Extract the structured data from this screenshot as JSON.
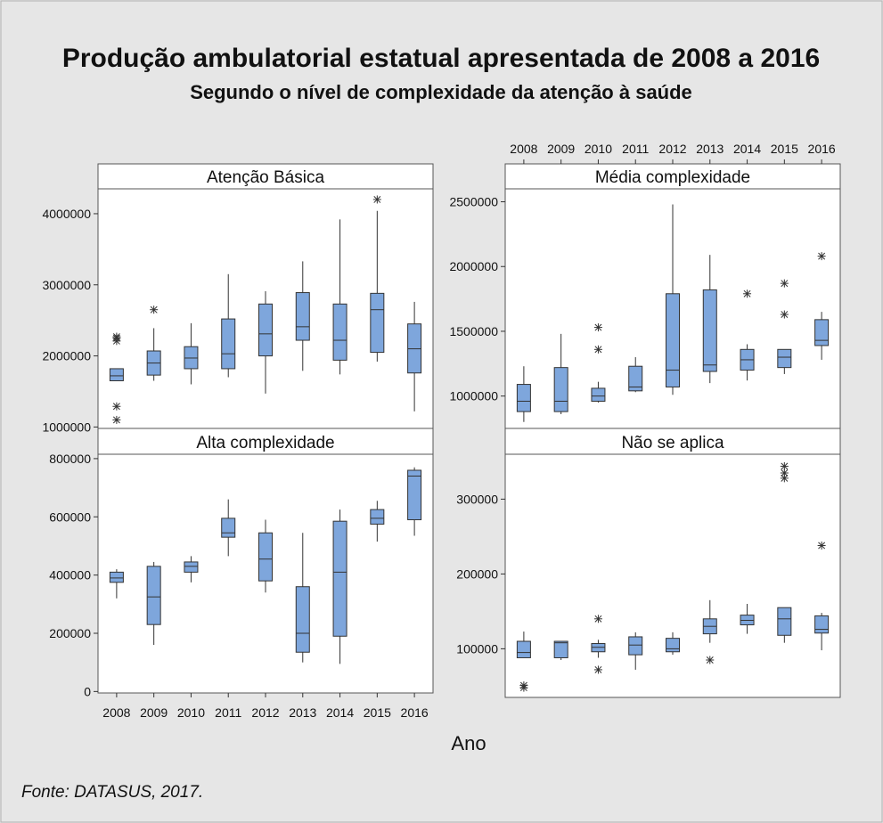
{
  "chart_data": {
    "type": "boxplot",
    "title": "Produção ambulatorial estatual apresentada de 2008 a 2016",
    "subtitle": "Segundo o nível de complexidade da atenção à saúde",
    "xlabel": "Ano",
    "source": "Fonte: DATASUS, 2017.",
    "categories": [
      "2008",
      "2009",
      "2010",
      "2011",
      "2012",
      "2013",
      "2014",
      "2015",
      "2016"
    ],
    "box_color": "#7ea6dc",
    "panels": [
      {
        "name": "Atenção Básica",
        "ylim": [
          980000,
          4350000
        ],
        "yticks": [
          1000000,
          2000000,
          3000000,
          4000000
        ],
        "ytick_labels": [
          "1000000",
          "2000000",
          "3000000",
          "4000000"
        ],
        "boxes": [
          {
            "min": 1650000,
            "q1": 1650000,
            "median": 1720000,
            "q3": 1820000,
            "max": 1820000,
            "outliers": [
              1100000,
              1290000,
              2210000,
              2250000,
              2270000
            ]
          },
          {
            "min": 1650000,
            "q1": 1730000,
            "median": 1900000,
            "q3": 2070000,
            "max": 2390000,
            "outliers": [
              2650000
            ]
          },
          {
            "min": 1600000,
            "q1": 1820000,
            "median": 1970000,
            "q3": 2130000,
            "max": 2460000,
            "outliers": []
          },
          {
            "min": 1700000,
            "q1": 1820000,
            "median": 2030000,
            "q3": 2520000,
            "max": 3150000,
            "outliers": []
          },
          {
            "min": 1470000,
            "q1": 2000000,
            "median": 2310000,
            "q3": 2730000,
            "max": 2910000,
            "outliers": []
          },
          {
            "min": 1790000,
            "q1": 2220000,
            "median": 2410000,
            "q3": 2890000,
            "max": 3330000,
            "outliers": []
          },
          {
            "min": 1740000,
            "q1": 1940000,
            "median": 2220000,
            "q3": 2730000,
            "max": 3920000,
            "outliers": []
          },
          {
            "min": 1920000,
            "q1": 2050000,
            "median": 2650000,
            "q3": 2880000,
            "max": 4040000,
            "outliers": [
              4200000
            ]
          },
          {
            "min": 1220000,
            "q1": 1760000,
            "median": 2100000,
            "q3": 2450000,
            "max": 2760000,
            "outliers": []
          }
        ]
      },
      {
        "name": "Média complexidade",
        "ylim": [
          750000,
          2600000
        ],
        "yticks": [
          1000000,
          1500000,
          2000000,
          2500000
        ],
        "ytick_labels": [
          "1000000",
          "1500000",
          "2000000",
          "2500000"
        ],
        "boxes": [
          {
            "min": 800000,
            "q1": 880000,
            "median": 960000,
            "q3": 1090000,
            "max": 1230000,
            "outliers": []
          },
          {
            "min": 860000,
            "q1": 880000,
            "median": 960000,
            "q3": 1220000,
            "max": 1480000,
            "outliers": []
          },
          {
            "min": 950000,
            "q1": 960000,
            "median": 1000000,
            "q3": 1060000,
            "max": 1110000,
            "outliers": [
              1360000,
              1530000
            ]
          },
          {
            "min": 1030000,
            "q1": 1040000,
            "median": 1070000,
            "q3": 1230000,
            "max": 1300000,
            "outliers": []
          },
          {
            "min": 1010000,
            "q1": 1070000,
            "median": 1200000,
            "q3": 1790000,
            "max": 2480000,
            "outliers": []
          },
          {
            "min": 1100000,
            "q1": 1190000,
            "median": 1240000,
            "q3": 1820000,
            "max": 2090000,
            "outliers": []
          },
          {
            "min": 1120000,
            "q1": 1200000,
            "median": 1280000,
            "q3": 1360000,
            "max": 1400000,
            "outliers": [
              1790000
            ]
          },
          {
            "min": 1170000,
            "q1": 1220000,
            "median": 1300000,
            "q3": 1360000,
            "max": 1360000,
            "outliers": [
              1630000,
              1870000
            ]
          },
          {
            "min": 1280000,
            "q1": 1390000,
            "median": 1430000,
            "q3": 1590000,
            "max": 1650000,
            "outliers": [
              2080000
            ]
          }
        ]
      },
      {
        "name": "Alta complexidade",
        "ylim": [
          -5000,
          815000
        ],
        "yticks": [
          0,
          200000,
          400000,
          600000,
          800000
        ],
        "ytick_labels": [
          "0",
          "200000",
          "400000",
          "600000",
          "800000"
        ],
        "boxes": [
          {
            "min": 320000,
            "q1": 375000,
            "median": 390000,
            "q3": 410000,
            "max": 420000,
            "outliers": []
          },
          {
            "min": 160000,
            "q1": 230000,
            "median": 325000,
            "q3": 430000,
            "max": 445000,
            "outliers": []
          },
          {
            "min": 375000,
            "q1": 410000,
            "median": 430000,
            "q3": 445000,
            "max": 465000,
            "outliers": []
          },
          {
            "min": 465000,
            "q1": 530000,
            "median": 545000,
            "q3": 595000,
            "max": 660000,
            "outliers": []
          },
          {
            "min": 340000,
            "q1": 380000,
            "median": 455000,
            "q3": 545000,
            "max": 590000,
            "outliers": []
          },
          {
            "min": 100000,
            "q1": 135000,
            "median": 200000,
            "q3": 360000,
            "max": 545000,
            "outliers": []
          },
          {
            "min": 95000,
            "q1": 190000,
            "median": 410000,
            "q3": 585000,
            "max": 625000,
            "outliers": []
          },
          {
            "min": 515000,
            "q1": 575000,
            "median": 595000,
            "q3": 625000,
            "max": 655000,
            "outliers": []
          },
          {
            "min": 535000,
            "q1": 590000,
            "median": 740000,
            "q3": 760000,
            "max": 770000,
            "outliers": []
          }
        ]
      },
      {
        "name": "Não se aplica",
        "ylim": [
          35000,
          360000
        ],
        "yticks": [
          100000,
          200000,
          300000
        ],
        "ytick_labels": [
          "100000",
          "200000",
          "300000"
        ],
        "boxes": [
          {
            "min": 88000,
            "q1": 88000,
            "median": 95000,
            "q3": 110000,
            "max": 123000,
            "outliers": [
              48000,
              51000
            ]
          },
          {
            "min": 85000,
            "q1": 88000,
            "median": 108000,
            "q3": 110000,
            "max": 110000,
            "outliers": []
          },
          {
            "min": 88000,
            "q1": 96000,
            "median": 102000,
            "q3": 107000,
            "max": 112000,
            "outliers": [
              72000,
              140000
            ]
          },
          {
            "min": 72000,
            "q1": 92000,
            "median": 105000,
            "q3": 116000,
            "max": 122000,
            "outliers": []
          },
          {
            "min": 92000,
            "q1": 96000,
            "median": 100000,
            "q3": 114000,
            "max": 122000,
            "outliers": []
          },
          {
            "min": 108000,
            "q1": 120000,
            "median": 130000,
            "q3": 140000,
            "max": 165000,
            "outliers": [
              85000
            ]
          },
          {
            "min": 120000,
            "q1": 132000,
            "median": 138000,
            "q3": 145000,
            "max": 160000,
            "outliers": []
          },
          {
            "min": 108000,
            "q1": 118000,
            "median": 140000,
            "q3": 155000,
            "max": 155000,
            "outliers": [
              328000,
              335000,
              344000
            ]
          },
          {
            "min": 98000,
            "q1": 121000,
            "median": 126000,
            "q3": 144000,
            "max": 148000,
            "outliers": [
              238000
            ]
          }
        ]
      }
    ]
  }
}
